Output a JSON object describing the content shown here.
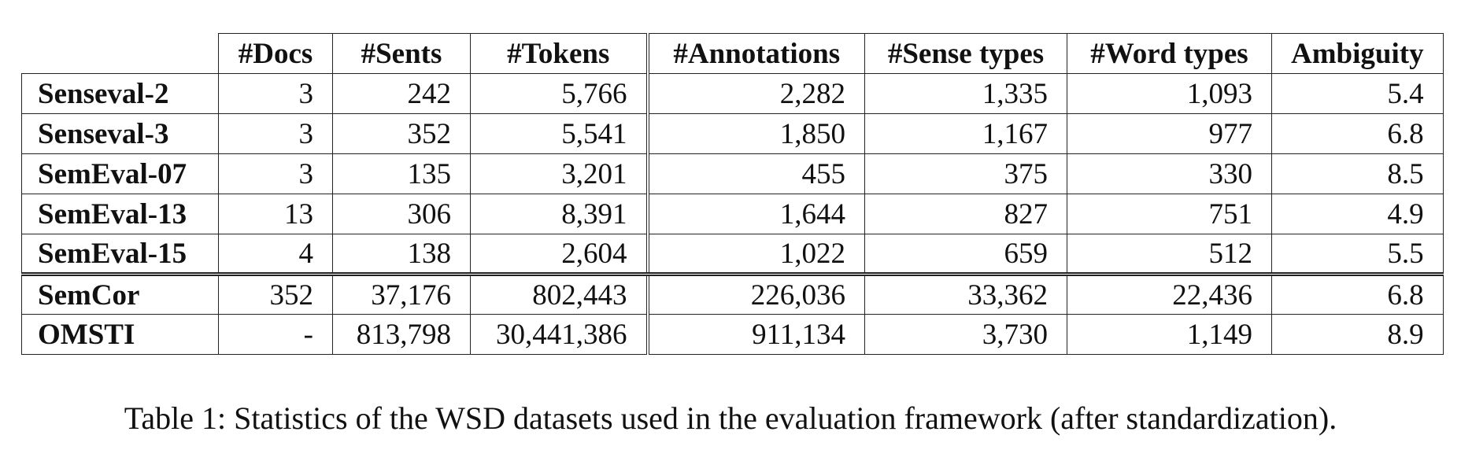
{
  "table": {
    "headers": [
      "",
      "#Docs",
      "#Sents",
      "#Tokens",
      "#Annotations",
      "#Sense types",
      "#Word types",
      "Ambiguity"
    ],
    "rows": [
      {
        "name": "Senseval-2",
        "values": [
          "3",
          "242",
          "5,766",
          "2,282",
          "1,335",
          "1,093",
          "5.4"
        ]
      },
      {
        "name": "Senseval-3",
        "values": [
          "3",
          "352",
          "5,541",
          "1,850",
          "1,167",
          "977",
          "6.8"
        ]
      },
      {
        "name": "SemEval-07",
        "values": [
          "3",
          "135",
          "3,201",
          "455",
          "375",
          "330",
          "8.5"
        ]
      },
      {
        "name": "SemEval-13",
        "values": [
          "13",
          "306",
          "8,391",
          "1,644",
          "827",
          "751",
          "4.9"
        ]
      },
      {
        "name": "SemEval-15",
        "values": [
          "4",
          "138",
          "2,604",
          "1,022",
          "659",
          "512",
          "5.5"
        ]
      },
      {
        "name": "SemCor",
        "values": [
          "352",
          "37,176",
          "802,443",
          "226,036",
          "33,362",
          "22,436",
          "6.8"
        ]
      },
      {
        "name": "OMSTI",
        "values": [
          "-",
          "813,798",
          "30,441,386",
          "911,134",
          "3,730",
          "1,149",
          "8.9"
        ]
      }
    ]
  },
  "caption": "Table 1: Statistics of the WSD datasets used in the evaluation framework (after standardization)."
}
